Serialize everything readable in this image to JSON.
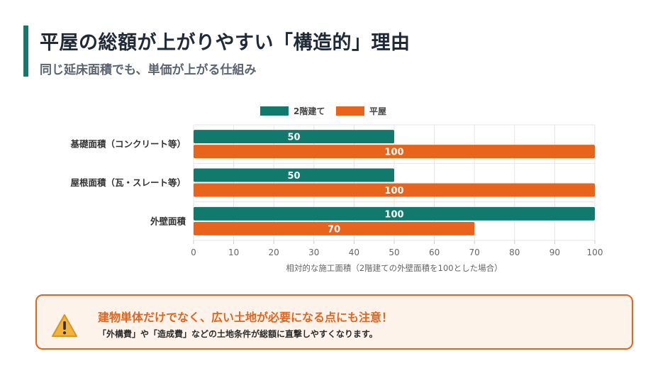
{
  "header": {
    "title": "平屋の総額が上がりやすい「構造的」理由",
    "subtitle": "同じ延床面積でも、単価が上がる仕組み"
  },
  "colors": {
    "two_story": "#127a6c",
    "one_story": "#e8631b",
    "accent": "#e8631b"
  },
  "chart_data": {
    "type": "bar",
    "orientation": "horizontal",
    "categories": [
      "基礎面積（コンクリート等）",
      "屋根面積（瓦・スレート等）",
      "外壁面積"
    ],
    "series": [
      {
        "name": "2階建て",
        "values": [
          50,
          50,
          100
        ]
      },
      {
        "name": "平屋",
        "values": [
          100,
          100,
          70
        ]
      }
    ],
    "xlim": [
      0,
      100
    ],
    "xticks": [
      0,
      10,
      20,
      30,
      40,
      50,
      60,
      70,
      80,
      90,
      100
    ],
    "xlabel": "相対的な施工面積（2階建ての外壁面積を100とした場合）",
    "legend_position": "top-center",
    "grid": true
  },
  "callout": {
    "heading": "建物単体だけでなく、広い土地が必要になる点にも注意！",
    "body": "「外構費」や「造成費」などの土地条件が総額に直撃しやすくなります。",
    "icon": "warning-icon"
  }
}
